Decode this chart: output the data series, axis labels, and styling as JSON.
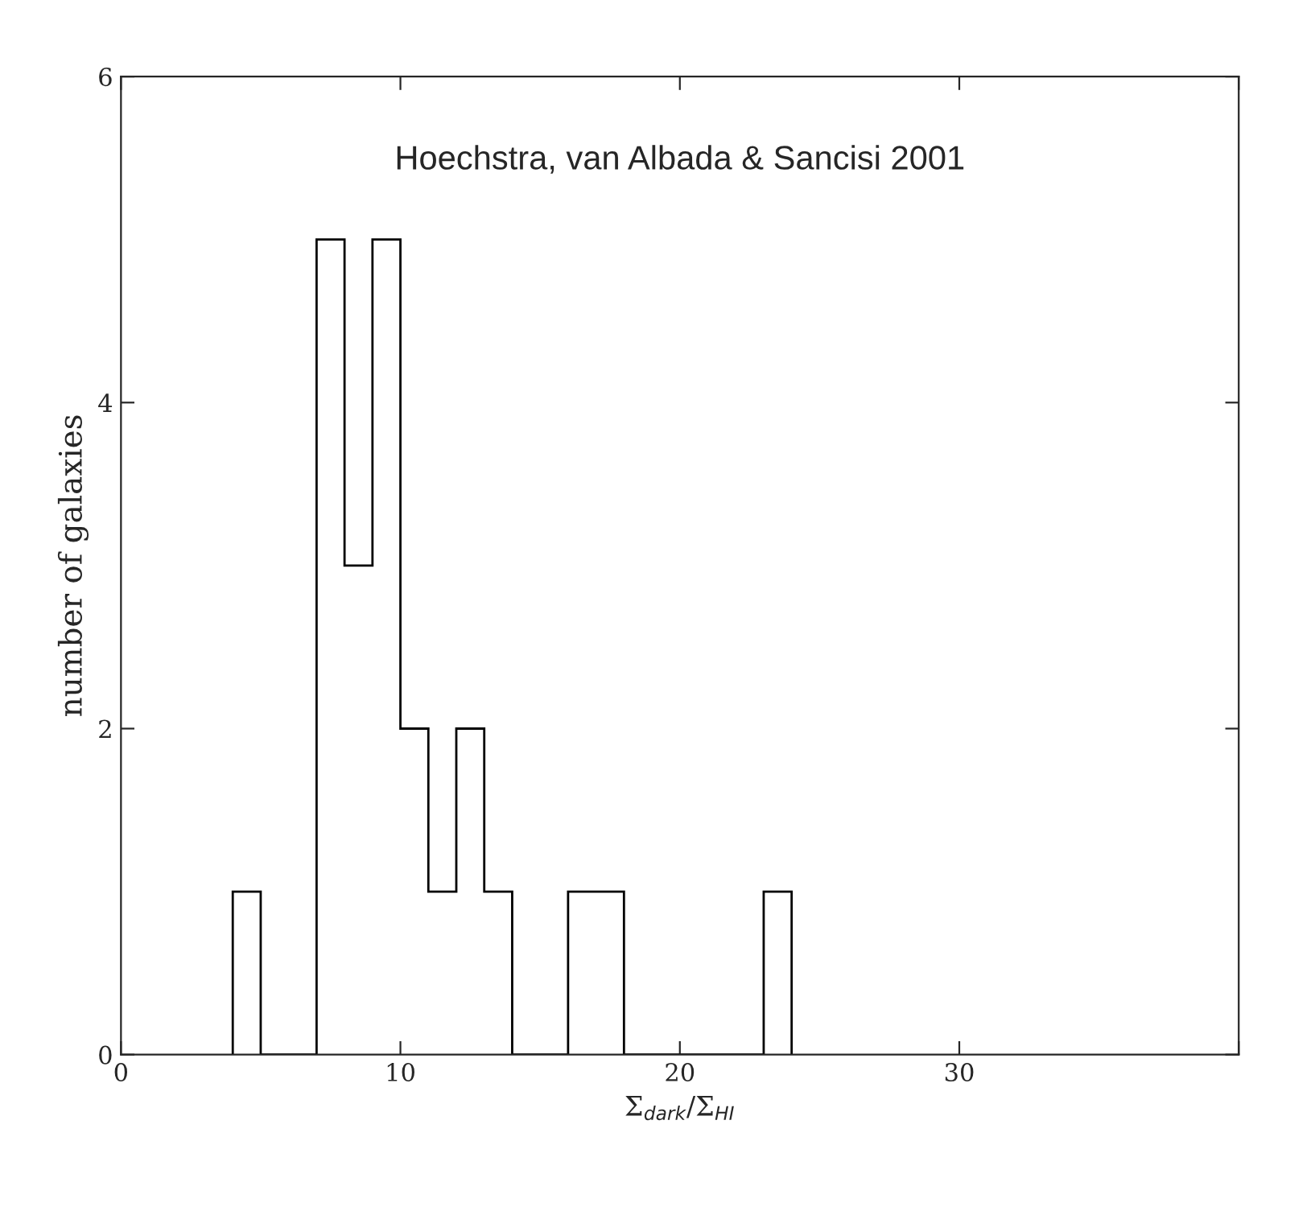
{
  "chart_data": {
    "type": "histogram",
    "annotations": [
      "Hoechstra, van Albada & Sancisi 2001"
    ],
    "xlabel": "Σ$_{dark}$/Σ$_{HI}$",
    "ylabel": "number of galaxies",
    "bins": [
      4,
      5,
      6,
      7,
      8,
      9,
      10,
      11,
      12,
      13,
      14,
      15,
      16,
      17,
      18,
      19,
      20,
      21,
      22,
      23,
      24
    ],
    "values": [
      1,
      0,
      0,
      5,
      3,
      5,
      2,
      1,
      2,
      1,
      0,
      0,
      1,
      1,
      0,
      0,
      0,
      0,
      0,
      1
    ],
    "color": "#000000",
    "xlim": [
      0,
      40
    ],
    "xticks": [
      0,
      10,
      20,
      30,
      {
        "value": 40,
        "label": null
      }
    ],
    "ylim": [
      0,
      6
    ],
    "yticks": [
      0,
      2,
      4,
      6
    ],
    "grid": false
  }
}
